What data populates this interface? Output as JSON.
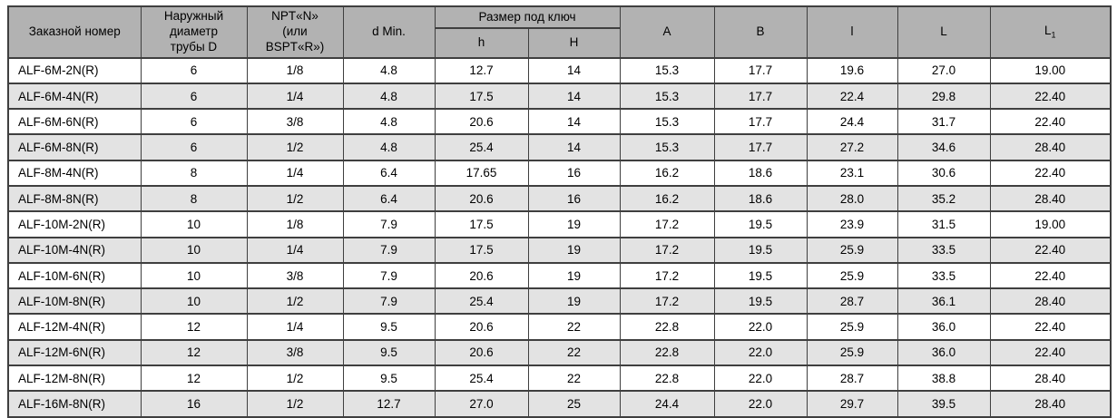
{
  "colors": {
    "header_bg": "#b2b2b2",
    "row_alt_bg": "#e3e3e3",
    "border": "#3f3f3f"
  },
  "table": {
    "headers": {
      "order_number": "Заказной номер",
      "outer_diameter": "Наружный\nдиаметр\nтрубы D",
      "npt": "NPT«N»\n(или\nBSPT«R»)",
      "d_min": "d Min.",
      "wrench_size_group": "Размер под ключ",
      "h_small": "h",
      "h_big": "H",
      "a": "A",
      "b": "B",
      "l_small": "l",
      "l_big": "L",
      "l1": {
        "base": "L",
        "sub": "1"
      }
    },
    "rows": [
      [
        "ALF-6M-2N(R)",
        "6",
        "1/8",
        "4.8",
        "12.7",
        "14",
        "15.3",
        "17.7",
        "19.6",
        "27.0",
        "19.00"
      ],
      [
        "ALF-6M-4N(R)",
        "6",
        "1/4",
        "4.8",
        "17.5",
        "14",
        "15.3",
        "17.7",
        "22.4",
        "29.8",
        "22.40"
      ],
      [
        "ALF-6M-6N(R)",
        "6",
        "3/8",
        "4.8",
        "20.6",
        "14",
        "15.3",
        "17.7",
        "24.4",
        "31.7",
        "22.40"
      ],
      [
        "ALF-6M-8N(R)",
        "6",
        "1/2",
        "4.8",
        "25.4",
        "14",
        "15.3",
        "17.7",
        "27.2",
        "34.6",
        "28.40"
      ],
      [
        "ALF-8M-4N(R)",
        "8",
        "1/4",
        "6.4",
        "17.65",
        "16",
        "16.2",
        "18.6",
        "23.1",
        "30.6",
        "22.40"
      ],
      [
        "ALF-8M-8N(R)",
        "8",
        "1/2",
        "6.4",
        "20.6",
        "16",
        "16.2",
        "18.6",
        "28.0",
        "35.2",
        "28.40"
      ],
      [
        "ALF-10M-2N(R)",
        "10",
        "1/8",
        "7.9",
        "17.5",
        "19",
        "17.2",
        "19.5",
        "23.9",
        "31.5",
        "19.00"
      ],
      [
        "ALF-10M-4N(R)",
        "10",
        "1/4",
        "7.9",
        "17.5",
        "19",
        "17.2",
        "19.5",
        "25.9",
        "33.5",
        "22.40"
      ],
      [
        "ALF-10M-6N(R)",
        "10",
        "3/8",
        "7.9",
        "20.6",
        "19",
        "17.2",
        "19.5",
        "25.9",
        "33.5",
        "22.40"
      ],
      [
        "ALF-10M-8N(R)",
        "10",
        "1/2",
        "7.9",
        "25.4",
        "19",
        "17.2",
        "19.5",
        "28.7",
        "36.1",
        "28.40"
      ],
      [
        "ALF-12M-4N(R)",
        "12",
        "1/4",
        "9.5",
        "20.6",
        "22",
        "22.8",
        "22.0",
        "25.9",
        "36.0",
        "22.40"
      ],
      [
        "ALF-12M-6N(R)",
        "12",
        "3/8",
        "9.5",
        "20.6",
        "22",
        "22.8",
        "22.0",
        "25.9",
        "36.0",
        "22.40"
      ],
      [
        "ALF-12M-8N(R)",
        "12",
        "1/2",
        "9.5",
        "25.4",
        "22",
        "22.8",
        "22.0",
        "28.7",
        "38.8",
        "28.40"
      ],
      [
        "ALF-16M-8N(R)",
        "16",
        "1/2",
        "12.7",
        "27.0",
        "25",
        "24.4",
        "22.0",
        "29.7",
        "39.5",
        "28.40"
      ]
    ]
  }
}
